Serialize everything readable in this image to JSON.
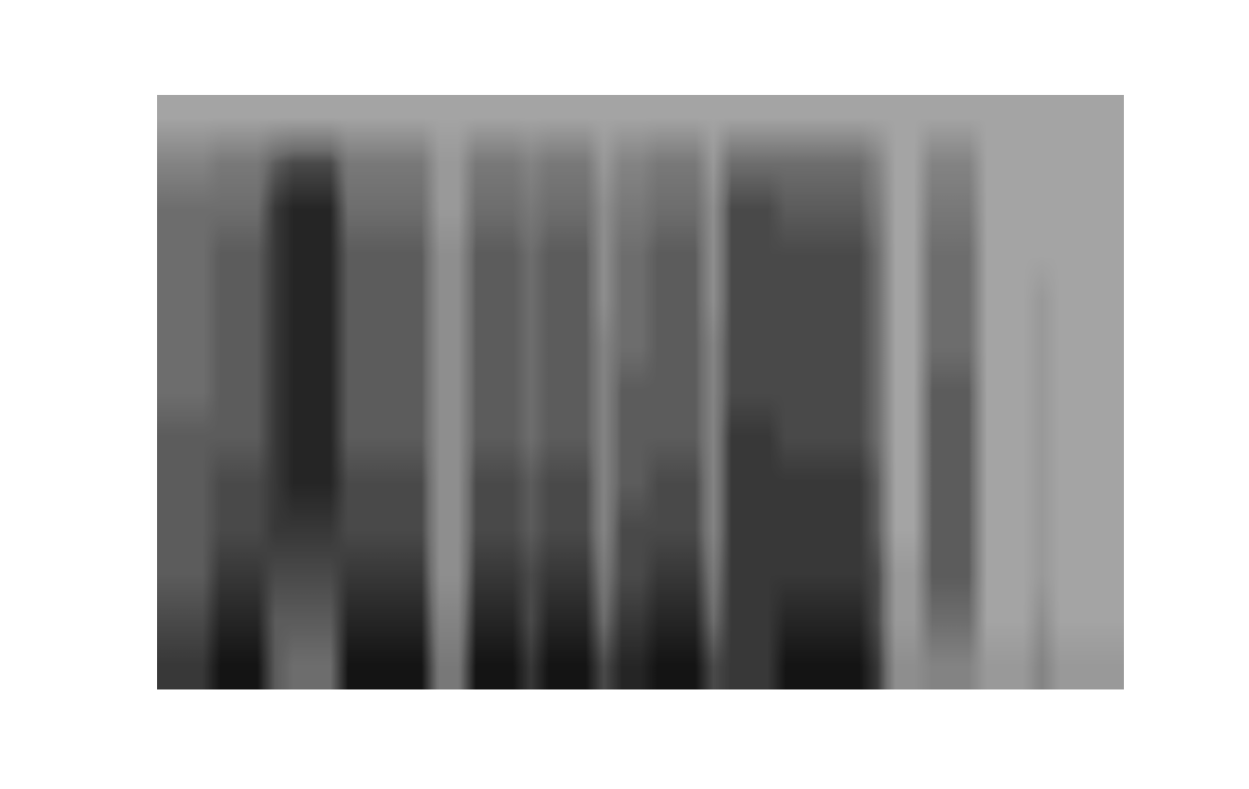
{
  "chart_data": {
    "type": "heatmap",
    "tick_labels": false,
    "cells": [
      [
        0,
        0,
        0,
        0,
        0,
        0,
        0,
        0,
        0,
        0,
        0,
        0,
        0,
        0,
        0,
        0,
        0,
        0,
        0,
        0,
        0,
        0,
        0,
        0,
        0,
        0,
        0,
        0,
        0,
        0,
        0,
        0,
        0,
        0,
        0,
        0,
        0,
        0,
        0,
        0,
        0,
        0,
        0,
        0,
        0,
        0,
        0,
        0,
        0,
        0,
        0,
        0,
        0
      ],
      [
        3,
        3,
        3,
        4,
        4,
        4,
        6,
        7,
        7,
        7,
        4,
        4,
        4,
        4,
        4,
        1,
        1,
        4,
        4,
        4,
        3,
        4,
        4,
        4,
        1,
        3,
        3,
        4,
        4,
        4,
        1,
        5,
        5,
        5,
        5,
        5,
        5,
        5,
        5,
        3,
        0,
        0,
        3,
        3,
        3,
        0,
        0,
        0,
        0,
        0,
        0,
        0,
        0
      ],
      [
        5,
        5,
        5,
        5,
        5,
        5,
        8,
        9,
        9,
        9,
        5,
        5,
        5,
        5,
        5,
        1,
        1,
        5,
        5,
        5,
        4,
        5,
        5,
        5,
        2,
        4,
        4,
        5,
        5,
        5,
        2,
        7,
        7,
        7,
        6,
        6,
        6,
        6,
        6,
        4,
        0,
        0,
        4,
        4,
        4,
        0,
        0,
        0,
        0,
        0,
        0,
        0,
        0
      ],
      [
        5,
        5,
        5,
        6,
        6,
        6,
        8,
        9,
        9,
        9,
        6,
        6,
        6,
        6,
        6,
        2,
        2,
        6,
        6,
        6,
        5,
        6,
        6,
        6,
        2,
        5,
        5,
        6,
        6,
        6,
        2,
        7,
        7,
        7,
        7,
        7,
        7,
        7,
        7,
        5,
        0,
        0,
        5,
        5,
        5,
        0,
        0,
        0,
        0,
        0,
        0,
        0,
        0
      ],
      [
        5,
        5,
        5,
        6,
        6,
        6,
        8,
        9,
        9,
        9,
        6,
        6,
        6,
        6,
        6,
        2,
        2,
        6,
        6,
        6,
        5,
        6,
        6,
        6,
        2,
        5,
        5,
        6,
        6,
        6,
        2,
        7,
        7,
        7,
        7,
        7,
        7,
        7,
        7,
        5,
        0,
        0,
        5,
        5,
        5,
        0,
        0,
        0,
        1,
        0,
        0,
        0,
        0
      ],
      [
        5,
        5,
        5,
        6,
        6,
        6,
        8,
        9,
        9,
        9,
        6,
        6,
        6,
        6,
        6,
        2,
        2,
        6,
        6,
        6,
        5,
        6,
        6,
        6,
        3,
        5,
        5,
        6,
        6,
        6,
        3,
        7,
        7,
        7,
        7,
        7,
        7,
        7,
        7,
        5,
        0,
        0,
        5,
        5,
        5,
        0,
        0,
        0,
        1,
        0,
        0,
        0,
        0
      ],
      [
        5,
        5,
        5,
        6,
        6,
        6,
        8,
        9,
        9,
        9,
        6,
        6,
        6,
        6,
        6,
        2,
        2,
        6,
        6,
        6,
        5,
        6,
        6,
        6,
        3,
        6,
        6,
        6,
        6,
        6,
        3,
        7,
        7,
        7,
        7,
        7,
        7,
        7,
        7,
        5,
        0,
        0,
        6,
        6,
        6,
        0,
        0,
        0,
        1,
        0,
        0,
        0,
        0
      ],
      [
        6,
        6,
        6,
        6,
        6,
        6,
        8,
        9,
        9,
        9,
        6,
        6,
        6,
        6,
        6,
        2,
        2,
        6,
        6,
        6,
        5,
        6,
        6,
        6,
        3,
        6,
        6,
        6,
        6,
        6,
        3,
        8,
        8,
        8,
        7,
        7,
        7,
        7,
        7,
        5,
        0,
        0,
        6,
        6,
        6,
        0,
        0,
        0,
        1,
        0,
        0,
        0,
        0
      ],
      [
        6,
        6,
        6,
        7,
        7,
        7,
        8,
        9,
        9,
        9,
        7,
        7,
        7,
        7,
        7,
        2,
        2,
        7,
        7,
        7,
        6,
        7,
        7,
        7,
        3,
        6,
        6,
        7,
        7,
        7,
        3,
        8,
        8,
        8,
        8,
        8,
        8,
        8,
        8,
        6,
        0,
        0,
        6,
        6,
        6,
        0,
        0,
        0,
        1,
        0,
        0,
        0,
        0
      ],
      [
        6,
        6,
        6,
        7,
        7,
        7,
        8,
        8,
        8,
        8,
        7,
        7,
        7,
        7,
        7,
        2,
        2,
        7,
        7,
        7,
        6,
        7,
        7,
        7,
        3,
        7,
        7,
        7,
        7,
        7,
        3,
        8,
        8,
        8,
        8,
        8,
        8,
        8,
        8,
        6,
        0,
        0,
        6,
        6,
        6,
        0,
        0,
        0,
        1,
        0,
        0,
        0,
        0
      ],
      [
        6,
        6,
        6,
        8,
        8,
        8,
        7,
        7,
        7,
        7,
        8,
        8,
        8,
        8,
        8,
        2,
        2,
        8,
        8,
        8,
        7,
        8,
        8,
        8,
        4,
        7,
        7,
        8,
        8,
        8,
        4,
        8,
        8,
        8,
        8,
        8,
        8,
        8,
        8,
        7,
        1,
        1,
        6,
        6,
        6,
        0,
        0,
        0,
        1,
        0,
        0,
        0,
        0
      ],
      [
        7,
        7,
        7,
        9,
        9,
        9,
        6,
        6,
        6,
        6,
        9,
        9,
        9,
        9,
        9,
        3,
        3,
        9,
        9,
        9,
        7,
        9,
        9,
        9,
        5,
        8,
        8,
        9,
        9,
        9,
        5,
        8,
        8,
        8,
        9,
        9,
        9,
        9,
        9,
        7,
        1,
        1,
        5,
        5,
        5,
        0,
        0,
        0,
        2,
        0,
        0,
        0,
        0
      ],
      [
        8,
        8,
        8,
        10,
        10,
        10,
        6,
        5,
        5,
        5,
        10,
        10,
        10,
        10,
        10,
        4,
        4,
        10,
        10,
        10,
        8,
        10,
        10,
        10,
        7,
        9,
        9,
        10,
        10,
        10,
        7,
        8,
        8,
        8,
        10,
        10,
        10,
        10,
        10,
        8,
        2,
        2,
        3,
        3,
        3,
        1,
        1,
        1,
        3,
        1,
        1,
        1,
        1
      ]
    ]
  }
}
